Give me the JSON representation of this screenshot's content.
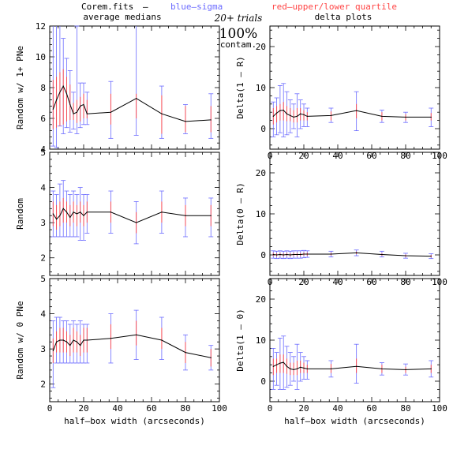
{
  "header": {
    "file": "Corem.fits",
    "dash": "–",
    "blue_label": "blue–sigma",
    "red_label": "red–upper/lower quartile",
    "left_title": "average medians",
    "right_title": "delta plots",
    "trials": "20+ trials",
    "percent": "100%",
    "contam": "contam."
  },
  "colors": {
    "median": "#000000",
    "sigma": "#6b6bff",
    "quartile": "#ff4444",
    "axis": "#000000"
  },
  "chart_data": [
    {
      "id": "left-top",
      "type": "line",
      "ylabel": "Random w/ 1+ PNe",
      "ylim": [
        4,
        12
      ],
      "xlim": [
        0,
        100
      ],
      "xticks": [
        0,
        20,
        40,
        60,
        80,
        100
      ],
      "yticks": [
        4,
        6,
        8,
        10,
        12
      ],
      "show_xticklabels": false,
      "x": [
        2,
        4,
        6,
        8,
        10,
        12,
        14,
        16,
        18,
        20,
        22,
        36,
        51,
        66,
        80,
        95
      ],
      "y": [
        6.6,
        7.2,
        7.7,
        8.1,
        7.6,
        6.9,
        6.3,
        6.4,
        6.8,
        6.9,
        6.3,
        6.4,
        7.3,
        6.3,
        5.8,
        5.9
      ],
      "sigma": [
        [
          4.2,
          12.6
        ],
        [
          4.1,
          12.6
        ],
        [
          5.5,
          12.6
        ],
        [
          5.0,
          11.2
        ],
        [
          5.4,
          9.9
        ],
        [
          5.1,
          9.1
        ],
        [
          5.3,
          7.7
        ],
        [
          5.0,
          12.0
        ],
        [
          5.4,
          8.3
        ],
        [
          5.6,
          8.3
        ],
        [
          5.6,
          7.7
        ],
        [
          4.7,
          8.4
        ],
        [
          4.9,
          12.2
        ],
        [
          4.7,
          8.1
        ],
        [
          5.0,
          6.9
        ],
        [
          4.7,
          7.6
        ]
      ],
      "quartile": [
        [
          5.3,
          8.5
        ],
        [
          5.4,
          8.7
        ],
        [
          5.5,
          9.0
        ],
        [
          5.6,
          9.2
        ],
        [
          5.8,
          8.7
        ],
        [
          5.9,
          8.2
        ],
        [
          5.9,
          7.0
        ],
        [
          5.7,
          7.2
        ],
        [
          5.8,
          7.4
        ],
        [
          6.0,
          7.6
        ],
        [
          6.0,
          7.2
        ],
        [
          5.6,
          7.6
        ],
        [
          6.0,
          7.6
        ],
        [
          5.0,
          7.5
        ],
        [
          5.1,
          6.8
        ],
        [
          5.1,
          6.8
        ]
      ]
    },
    {
      "id": "right-top",
      "type": "line",
      "ylabel": "Delta(1 – R)",
      "ylim": [
        -5,
        25
      ],
      "xlim": [
        0,
        100
      ],
      "xticks": [
        0,
        20,
        40,
        60,
        80,
        100
      ],
      "yticks": [
        0,
        10,
        20
      ],
      "show_xticklabels": true,
      "x": [
        2,
        4,
        6,
        8,
        10,
        12,
        14,
        16,
        18,
        20,
        22,
        36,
        51,
        66,
        80,
        95
      ],
      "y": [
        3.0,
        3.8,
        4.4,
        4.5,
        3.6,
        3.2,
        2.8,
        3.0,
        3.6,
        3.4,
        3.0,
        3.2,
        4.4,
        3.0,
        2.8,
        2.8
      ],
      "sigma": [
        [
          -2.0,
          6.5
        ],
        [
          -1.5,
          7.5
        ],
        [
          -1.0,
          10.5
        ],
        [
          -2.0,
          11.0
        ],
        [
          -1.5,
          9.0
        ],
        [
          -1.0,
          7.0
        ],
        [
          0.0,
          6.0
        ],
        [
          -2.0,
          8.5
        ],
        [
          0.0,
          7.0
        ],
        [
          0.5,
          6.0
        ],
        [
          0.5,
          5.0
        ],
        [
          1.5,
          5.0
        ],
        [
          -0.5,
          9.0
        ],
        [
          1.5,
          4.5
        ],
        [
          1.5,
          4.0
        ],
        [
          0.5,
          5.0
        ]
      ],
      "quartile": [
        [
          1.0,
          5.0
        ],
        [
          1.5,
          5.5
        ],
        [
          2.0,
          6.0
        ],
        [
          2.0,
          6.5
        ],
        [
          1.8,
          5.5
        ],
        [
          1.8,
          5.0
        ],
        [
          1.5,
          4.5
        ],
        [
          1.5,
          5.0
        ],
        [
          2.0,
          5.0
        ],
        [
          2.0,
          4.5
        ],
        [
          2.0,
          4.0
        ],
        [
          2.0,
          4.2
        ],
        [
          2.5,
          6.0
        ],
        [
          2.0,
          4.0
        ],
        [
          2.0,
          3.5
        ],
        [
          2.0,
          3.8
        ]
      ]
    },
    {
      "id": "left-mid",
      "type": "line",
      "ylabel": "Random",
      "ylim": [
        1.5,
        5
      ],
      "xlim": [
        0,
        100
      ],
      "xticks": [
        0,
        20,
        40,
        60,
        80,
        100
      ],
      "yticks": [
        2,
        3,
        4,
        5
      ],
      "show_xticklabels": false,
      "x": [
        2,
        4,
        6,
        8,
        10,
        12,
        14,
        16,
        18,
        20,
        22,
        36,
        51,
        66,
        80,
        95
      ],
      "y": [
        3.25,
        3.1,
        3.2,
        3.4,
        3.3,
        3.15,
        3.3,
        3.25,
        3.3,
        3.2,
        3.3,
        3.3,
        3.0,
        3.3,
        3.2,
        3.2
      ],
      "sigma": [
        [
          2.6,
          3.9
        ],
        [
          2.6,
          3.8
        ],
        [
          2.6,
          4.1
        ],
        [
          2.6,
          4.2
        ],
        [
          2.6,
          3.9
        ],
        [
          2.6,
          3.8
        ],
        [
          2.6,
          3.9
        ],
        [
          2.6,
          3.8
        ],
        [
          2.5,
          4.0
        ],
        [
          2.5,
          3.8
        ],
        [
          2.7,
          3.8
        ],
        [
          2.7,
          3.9
        ],
        [
          2.4,
          3.6
        ],
        [
          2.7,
          3.9
        ],
        [
          2.6,
          3.7
        ],
        [
          2.6,
          3.7
        ]
      ],
      "quartile": [
        [
          2.9,
          3.6
        ],
        [
          2.8,
          3.5
        ],
        [
          2.9,
          3.6
        ],
        [
          3.0,
          3.7
        ],
        [
          3.0,
          3.6
        ],
        [
          2.9,
          3.5
        ],
        [
          3.0,
          3.6
        ],
        [
          2.9,
          3.5
        ],
        [
          3.0,
          3.6
        ],
        [
          2.9,
          3.5
        ],
        [
          3.0,
          3.6
        ],
        [
          3.0,
          3.6
        ],
        [
          2.7,
          3.3
        ],
        [
          3.0,
          3.6
        ],
        [
          2.9,
          3.5
        ],
        [
          2.9,
          3.5
        ]
      ]
    },
    {
      "id": "right-mid",
      "type": "line",
      "ylabel": "Delta(0 – R)",
      "ylim": [
        -5,
        25
      ],
      "xlim": [
        0,
        100
      ],
      "xticks": [
        0,
        20,
        40,
        60,
        80,
        100
      ],
      "yticks": [
        0,
        10,
        20
      ],
      "show_xticklabels": true,
      "x": [
        2,
        4,
        6,
        8,
        10,
        12,
        14,
        16,
        18,
        20,
        22,
        36,
        51,
        66,
        80,
        95
      ],
      "y": [
        0.1,
        0.0,
        0.1,
        0.0,
        0.1,
        0.0,
        0.1,
        0.1,
        0.1,
        0.2,
        0.2,
        0.2,
        0.5,
        0.1,
        -0.2,
        -0.3
      ],
      "sigma": [
        [
          -0.8,
          1.0
        ],
        [
          -0.9,
          0.9
        ],
        [
          -0.8,
          1.0
        ],
        [
          -0.9,
          0.9
        ],
        [
          -0.8,
          1.0
        ],
        [
          -0.9,
          0.9
        ],
        [
          -0.8,
          1.0
        ],
        [
          -0.8,
          1.0
        ],
        [
          -0.8,
          1.0
        ],
        [
          -0.7,
          1.1
        ],
        [
          -0.6,
          1.0
        ],
        [
          -0.5,
          0.9
        ],
        [
          -0.2,
          1.2
        ],
        [
          -0.5,
          0.9
        ],
        [
          -0.8,
          0.4
        ],
        [
          -0.9,
          0.3
        ]
      ],
      "quartile": [
        [
          -0.3,
          0.5
        ],
        [
          -0.4,
          0.4
        ],
        [
          -0.3,
          0.5
        ],
        [
          -0.4,
          0.4
        ],
        [
          -0.3,
          0.5
        ],
        [
          -0.4,
          0.4
        ],
        [
          -0.3,
          0.5
        ],
        [
          -0.3,
          0.5
        ],
        [
          -0.3,
          0.5
        ],
        [
          -0.2,
          0.6
        ],
        [
          -0.2,
          0.6
        ],
        [
          -0.1,
          0.5
        ],
        [
          0.2,
          0.8
        ],
        [
          -0.2,
          0.4
        ],
        [
          -0.5,
          0.1
        ],
        [
          -0.6,
          0.0
        ]
      ]
    },
    {
      "id": "left-bot",
      "type": "line",
      "ylabel": "Random w/ 0 PNe",
      "ylim": [
        1.5,
        5
      ],
      "xlim": [
        0,
        100
      ],
      "xticks": [
        0,
        20,
        40,
        60,
        80,
        100
      ],
      "yticks": [
        2,
        3,
        4,
        5
      ],
      "show_xticklabels": true,
      "xlabel": "half–box width (arcseconds)",
      "x": [
        2,
        4,
        6,
        8,
        10,
        12,
        14,
        16,
        18,
        20,
        22,
        36,
        51,
        66,
        80,
        95
      ],
      "y": [
        2.95,
        3.2,
        3.25,
        3.25,
        3.2,
        3.1,
        3.25,
        3.2,
        3.1,
        3.25,
        3.25,
        3.3,
        3.4,
        3.25,
        2.9,
        2.75
      ],
      "sigma": [
        [
          1.9,
          3.8
        ],
        [
          2.6,
          3.9
        ],
        [
          2.6,
          3.9
        ],
        [
          2.6,
          3.8
        ],
        [
          2.6,
          3.8
        ],
        [
          2.6,
          3.7
        ],
        [
          2.6,
          3.8
        ],
        [
          2.6,
          3.7
        ],
        [
          2.6,
          3.8
        ],
        [
          2.6,
          3.7
        ],
        [
          2.6,
          3.7
        ],
        [
          2.6,
          4.0
        ],
        [
          2.7,
          4.1
        ],
        [
          2.7,
          3.9
        ],
        [
          2.4,
          3.4
        ],
        [
          2.4,
          3.1
        ]
      ],
      "quartile": [
        [
          2.6,
          3.3
        ],
        [
          2.9,
          3.5
        ],
        [
          2.9,
          3.6
        ],
        [
          2.9,
          3.6
        ],
        [
          2.9,
          3.5
        ],
        [
          2.8,
          3.4
        ],
        [
          2.9,
          3.6
        ],
        [
          2.9,
          3.5
        ],
        [
          2.8,
          3.4
        ],
        [
          2.9,
          3.6
        ],
        [
          2.9,
          3.6
        ],
        [
          3.0,
          3.7
        ],
        [
          3.1,
          3.8
        ],
        [
          3.0,
          3.6
        ],
        [
          2.6,
          3.2
        ],
        [
          2.5,
          3.0
        ]
      ]
    },
    {
      "id": "right-bot",
      "type": "line",
      "ylabel": "Delta(1 – 0)",
      "ylim": [
        -5,
        25
      ],
      "xlim": [
        0,
        100
      ],
      "xticks": [
        0,
        20,
        40,
        60,
        80,
        100
      ],
      "yticks": [
        0,
        10,
        20
      ],
      "show_xticklabels": true,
      "xlabel": "half–box width (arcseconds)",
      "x": [
        2,
        4,
        6,
        8,
        10,
        12,
        14,
        16,
        18,
        20,
        22,
        36,
        51,
        66,
        80,
        95
      ],
      "y": [
        3.6,
        4.0,
        4.4,
        4.6,
        3.6,
        3.0,
        2.8,
        3.0,
        3.4,
        3.2,
        3.0,
        3.0,
        3.6,
        3.0,
        2.8,
        3.0
      ],
      "sigma": [
        [
          -2.0,
          8.0
        ],
        [
          -1.0,
          7.0
        ],
        [
          -2.0,
          10.5
        ],
        [
          -2.0,
          11.0
        ],
        [
          -1.5,
          8.5
        ],
        [
          -1.0,
          7.0
        ],
        [
          0.0,
          6.0
        ],
        [
          -2.0,
          9.0
        ],
        [
          0.0,
          7.0
        ],
        [
          0.5,
          6.0
        ],
        [
          0.5,
          5.0
        ],
        [
          1.0,
          5.0
        ],
        [
          -0.5,
          9.0
        ],
        [
          1.5,
          4.5
        ],
        [
          1.5,
          4.2
        ],
        [
          1.0,
          5.0
        ]
      ],
      "quartile": [
        [
          1.5,
          5.5
        ],
        [
          2.0,
          5.5
        ],
        [
          2.0,
          6.5
        ],
        [
          2.0,
          6.5
        ],
        [
          1.8,
          5.5
        ],
        [
          1.5,
          4.5
        ],
        [
          1.5,
          4.5
        ],
        [
          1.5,
          5.0
        ],
        [
          2.0,
          5.0
        ],
        [
          2.0,
          4.5
        ],
        [
          2.0,
          4.0
        ],
        [
          2.0,
          4.2
        ],
        [
          2.0,
          5.5
        ],
        [
          2.0,
          4.0
        ],
        [
          2.0,
          3.5
        ],
        [
          2.0,
          4.0
        ]
      ]
    }
  ]
}
